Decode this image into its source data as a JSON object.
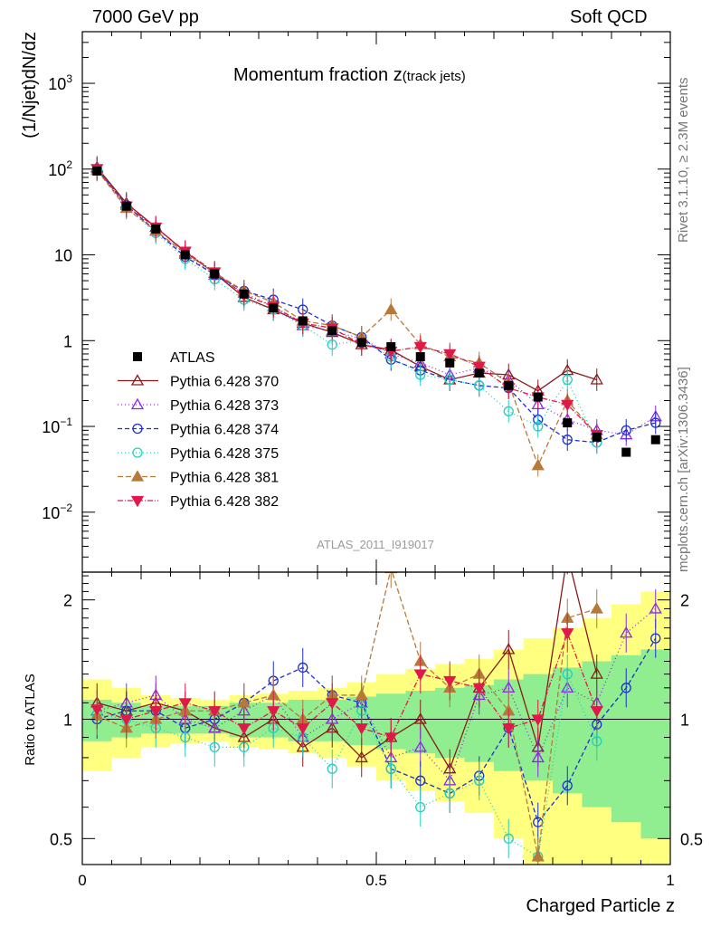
{
  "header": {
    "left": "7000 GeV pp",
    "right": "Soft QCD"
  },
  "side": {
    "rivet": "Rivet 3.1.10, ≥ 2.3M events",
    "mcplots": "mcplots.cern.ch [arXiv:1306.3436]"
  },
  "chart_data": {
    "type": "scatter",
    "title": "Momentum fraction z",
    "title_suffix": "(track jets)",
    "watermark": "ATLAS_2011_I919017",
    "xlabel": "Charged Particle z",
    "ylabel": "(1/Njet)dN/dz",
    "ratio_ylabel": "Ratio to ATLAS",
    "xlim": [
      0,
      1
    ],
    "ylim": [
      0.002,
      4000
    ],
    "yscale": "log",
    "ratio_ylim": [
      0.43,
      2.35
    ],
    "ratio_yscale": "log",
    "x_ticks": [
      "0",
      "0.5",
      "1"
    ],
    "y_ticks": [
      "10⁻²",
      "10⁻¹",
      "1",
      "10",
      "10²",
      "10³"
    ],
    "ratio_ticks": [
      "0.5",
      "1",
      "2"
    ],
    "legend_position": "lower-left",
    "x": [
      0.025,
      0.075,
      0.125,
      0.175,
      0.225,
      0.275,
      0.325,
      0.375,
      0.425,
      0.475,
      0.525,
      0.575,
      0.625,
      0.675,
      0.725,
      0.775,
      0.825,
      0.875,
      0.925,
      0.975
    ],
    "atlas": {
      "name": "ATLAS",
      "color": "#000000",
      "values": [
        95,
        37,
        20,
        10,
        6,
        3.5,
        2.4,
        1.7,
        1.3,
        0.95,
        0.85,
        0.65,
        0.55,
        0.42,
        0.3,
        0.22,
        0.11,
        0.075,
        0.05,
        0.07
      ],
      "band_inner": [
        0.12,
        0.1,
        0.08,
        0.08,
        0.08,
        0.1,
        0.1,
        0.12,
        0.12,
        0.14,
        0.16,
        0.18,
        0.2,
        0.22,
        0.26,
        0.3,
        0.35,
        0.4,
        0.45,
        0.5
      ],
      "band_outer": [
        0.26,
        0.2,
        0.15,
        0.13,
        0.12,
        0.15,
        0.16,
        0.18,
        0.2,
        0.24,
        0.3,
        0.34,
        0.38,
        0.42,
        0.5,
        0.6,
        0.7,
        0.8,
        0.95,
        1.1
      ]
    },
    "series": [
      {
        "name": "Pythia 6.428 370",
        "color": "#8b1a1a",
        "marker": "triangle-up-open",
        "dash": "",
        "values": [
          105,
          40,
          21,
          10.8,
          6.1,
          3.2,
          2.3,
          1.6,
          1.25,
          0.9,
          0.78,
          0.5,
          0.35,
          0.42,
          0.4,
          0.26,
          0.45,
          0.35,
          null,
          null
        ],
        "ratio": [
          1.1,
          1.05,
          1.1,
          1.05,
          0.95,
          0.9,
          1.0,
          0.85,
          0.95,
          0.8,
          0.9,
          1.0,
          0.75,
          1.2,
          1.5,
          0.85,
          2.6,
          1.3,
          null,
          null
        ]
      },
      {
        "name": "Pythia 6.428 373",
        "color": "#8a2be2",
        "marker": "triangle-up-open",
        "dash": "1 3",
        "values": [
          102,
          38,
          19,
          10.2,
          5.8,
          3.6,
          2.5,
          1.5,
          1.3,
          1.05,
          0.7,
          0.55,
          0.4,
          0.48,
          0.35,
          0.18,
          0.12,
          0.09,
          0.08,
          0.13
        ],
        "ratio": [
          1.05,
          1.1,
          1.15,
          1.0,
          0.95,
          1.05,
          1.15,
          0.9,
          1.0,
          1.1,
          0.8,
          0.85,
          0.7,
          1.15,
          1.2,
          0.8,
          1.2,
          1.1,
          1.65,
          1.9
        ]
      },
      {
        "name": "Pythia 6.428 374",
        "color": "#1e2fd0",
        "marker": "circle-open",
        "dash": "5 3",
        "values": [
          100,
          38,
          19,
          9.5,
          5.9,
          3.8,
          3.0,
          2.3,
          1.5,
          1.1,
          0.6,
          0.45,
          0.35,
          0.3,
          0.28,
          0.12,
          0.07,
          0.065,
          0.09,
          0.11
        ],
        "ratio": [
          1.0,
          1.05,
          1.05,
          0.95,
          1.0,
          1.1,
          1.25,
          1.35,
          1.15,
          1.1,
          0.75,
          0.7,
          0.65,
          0.72,
          0.95,
          0.55,
          0.68,
          0.97,
          1.2,
          1.6
        ]
      },
      {
        "name": "Pythia 6.428 375",
        "color": "#20d0c0",
        "marker": "circle-open",
        "dash": "1 3",
        "values": [
          98,
          36,
          18,
          9.0,
          5.2,
          3.0,
          2.3,
          1.5,
          0.9,
          1.0,
          0.65,
          0.4,
          0.35,
          0.3,
          0.15,
          0.1,
          0.35,
          0.065,
          null,
          null
        ],
        "ratio": [
          1.03,
          1.0,
          0.95,
          0.9,
          0.85,
          0.85,
          0.95,
          0.9,
          0.75,
          1.05,
          0.75,
          0.6,
          0.65,
          0.7,
          0.5,
          0.45,
          1.3,
          0.88,
          null,
          null
        ]
      },
      {
        "name": "Pythia 6.428 381",
        "color": "#b57a3a",
        "marker": "triangle-up-filled",
        "dash": "6 3",
        "values": [
          97,
          35,
          19,
          10.5,
          6.2,
          3.8,
          2.8,
          1.7,
          1.5,
          1.1,
          2.3,
          0.9,
          0.65,
          0.55,
          0.32,
          0.035,
          0.2,
          0.08,
          null,
          null
        ],
        "ratio": [
          1.02,
          0.95,
          1.0,
          1.05,
          1.05,
          1.1,
          1.15,
          1.0,
          1.15,
          1.15,
          2.4,
          1.4,
          1.2,
          1.3,
          1.05,
          0.45,
          1.8,
          1.9,
          null,
          null
        ]
      },
      {
        "name": "Pythia 6.428 382",
        "color": "#e0194b",
        "marker": "triangle-down-filled",
        "dash": "6 2 1 2",
        "values": [
          101,
          37,
          21,
          11,
          6.3,
          3.4,
          2.5,
          1.6,
          1.4,
          0.9,
          0.75,
          0.85,
          0.7,
          0.5,
          0.28,
          0.22,
          0.18,
          0.08,
          null,
          null
        ],
        "ratio": [
          1.06,
          1.0,
          1.05,
          1.1,
          1.05,
          0.95,
          1.05,
          0.95,
          1.1,
          0.95,
          0.9,
          1.3,
          1.25,
          1.2,
          0.95,
          1.0,
          1.65,
          1.05,
          null,
          null
        ]
      }
    ]
  }
}
